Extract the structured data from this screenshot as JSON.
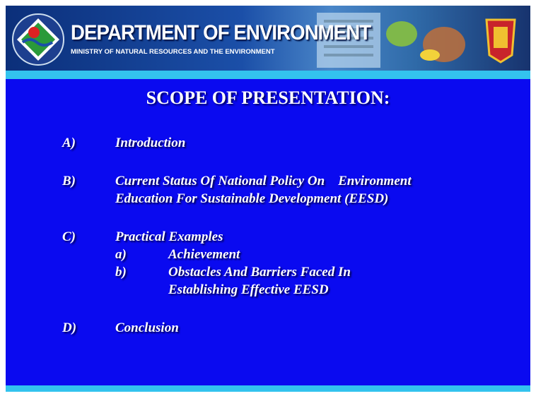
{
  "header": {
    "title": "DEPARTMENT OF ENVIRONMENT",
    "subtitle": "MINISTRY OF NATURAL RESOURCES AND THE ENVIRONMENT"
  },
  "slide": {
    "title": "SCOPE OF PRESENTATION:",
    "items": [
      {
        "label": "A)",
        "lines": [
          "Introduction"
        ]
      },
      {
        "label": "B)",
        "lines": [
          "Current Status Of National Policy On    Environment",
          "Education For Sustainable Development (EESD)"
        ]
      },
      {
        "label": "C)",
        "lines": [
          "Practical Examples"
        ],
        "subitems": [
          {
            "label": "a)",
            "lines": [
              "Achievement"
            ]
          },
          {
            "label": "b)",
            "lines": [
              "Obstacles And Barriers Faced In",
              "Establishing Effective EESD"
            ]
          }
        ]
      },
      {
        "label": "D)",
        "lines": [
          "Conclusion"
        ]
      }
    ]
  }
}
